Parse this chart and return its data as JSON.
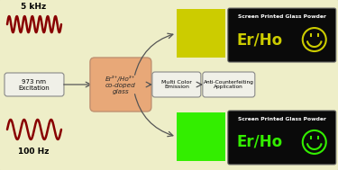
{
  "bg_color": "#eeeec8",
  "border_color": "#aaaaaa",
  "freq_top": "5 kHz",
  "freq_bottom": "100 Hz",
  "excitation_label": "973 nm\nExcitation",
  "glass_label": "Er³⁺/Ho³⁺\nco-doped\nglass",
  "multi_color_label": "Multi Color\nEmission",
  "anti_label": "Anti-Counterfeiting\nApplication",
  "screen_label": "Screen Printed Glass Powder",
  "erho_label": "Er/Ho",
  "yellow_color": "#cccc00",
  "green_color": "#33ee00",
  "wave_color": "#880000",
  "glass_color": "#e8a878",
  "pill_color": "#f0f0e8",
  "pill_stroke": "#888888",
  "black_panel": "#0a0a0a",
  "arrow_color": "#555555",
  "line_color": "#555555"
}
